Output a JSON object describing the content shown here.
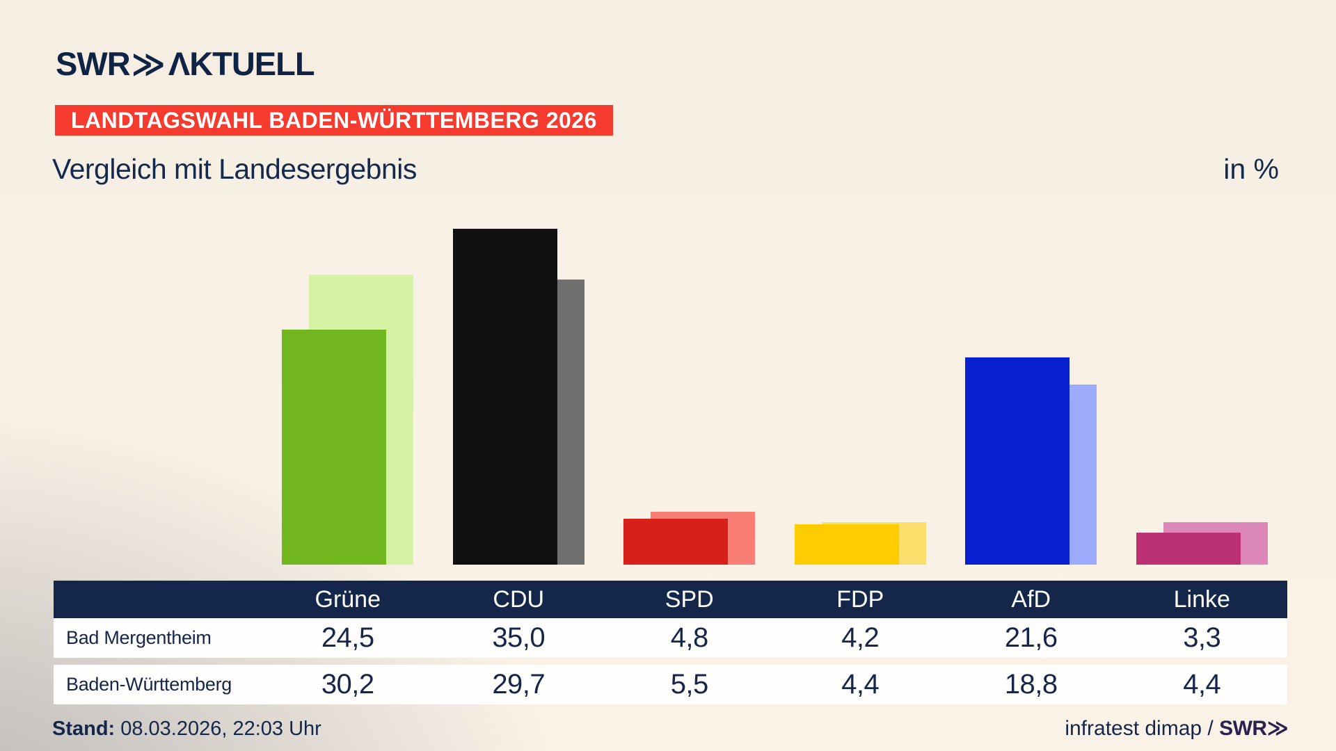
{
  "brand": {
    "logo_main": "SWR",
    "logo_chevrons": "≫",
    "logo_suffix": "ΛKTUELL",
    "logo_color": "#0f2345"
  },
  "badge": {
    "text": "LANDTAGSWAHL BADEN-WÜRTTEMBERG 2026",
    "bg_color": "#f43b2e",
    "text_color": "#ffffff"
  },
  "title": "Vergleich mit Landesergebnis",
  "unit_label": "in %",
  "chart_data": {
    "type": "bar",
    "title": "Vergleich mit Landesergebnis",
    "unit": "in %",
    "categories": [
      "Grüne",
      "CDU",
      "SPD",
      "FDP",
      "AfD",
      "Linke"
    ],
    "series": [
      {
        "name": "Bad Mergentheim",
        "values": [
          24.5,
          35.0,
          4.8,
          4.2,
          21.6,
          3.3
        ],
        "colors": [
          "#72b71f",
          "#101010",
          "#d8201a",
          "#ffcc00",
          "#0820cf",
          "#bc3173"
        ]
      },
      {
        "name": "Baden-Württemberg",
        "values": [
          30.2,
          29.7,
          5.5,
          4.4,
          18.8,
          4.4
        ],
        "colors": [
          "#d5f2a5",
          "#6f6f6e",
          "#f97e74",
          "#fbdf6d",
          "#9cabfb",
          "#db87b7"
        ]
      }
    ],
    "ylim": [
      0,
      36
    ],
    "grid": false,
    "legend_position": "table-below-chart",
    "value_labels_format": "german-decimal-comma"
  },
  "table": {
    "header_bg": "#14274a",
    "columns": [
      "Grüne",
      "CDU",
      "SPD",
      "FDP",
      "AfD",
      "Linke"
    ],
    "rows": [
      {
        "label": "Bad Mergentheim",
        "values": [
          "24,5",
          "35,0",
          "4,8",
          "4,2",
          "21,6",
          "3,3"
        ]
      },
      {
        "label": "Baden-Württemberg",
        "values": [
          "30,2",
          "29,7",
          "5,5",
          "4,4",
          "18,8",
          "4,4"
        ]
      }
    ]
  },
  "footer": {
    "stand_label": "Stand:",
    "stand_value": "08.03.2026, 22:03 Uhr",
    "source_text": "infratest dimap / ",
    "source_brand": "SWR",
    "source_brand_chevrons": "≫"
  }
}
